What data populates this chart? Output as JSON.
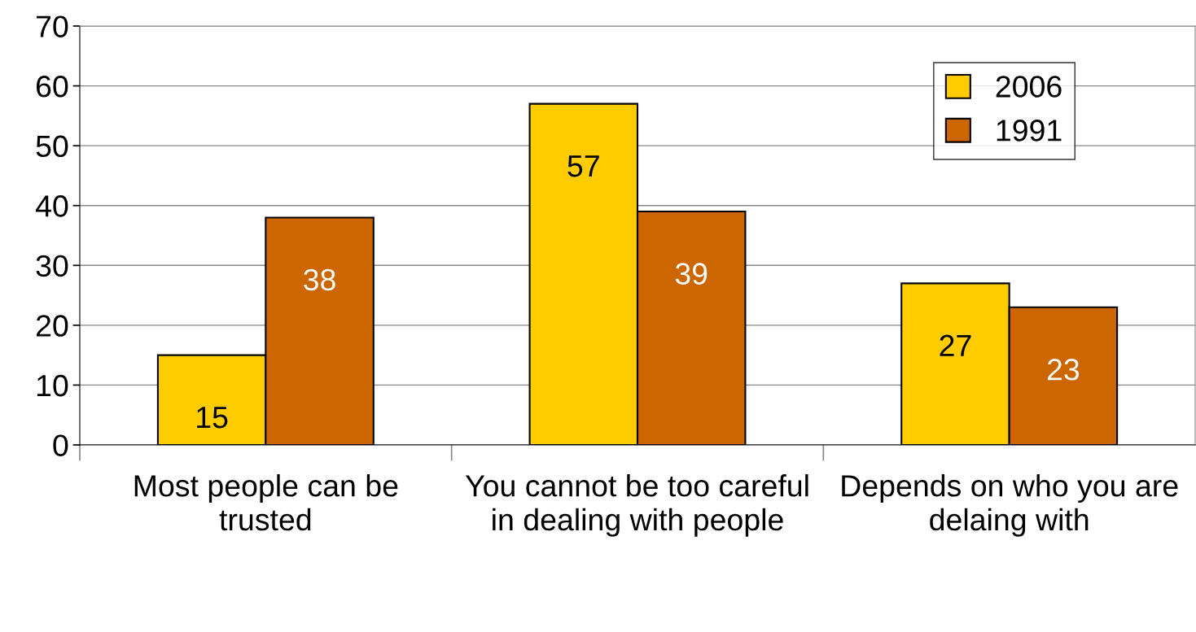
{
  "chart_data": {
    "type": "bar",
    "categories": [
      "Most people can be trusted",
      "You cannot be too careful in dealing with people",
      "Depends on who you are delaing with"
    ],
    "series": [
      {
        "name": "2006",
        "color": "#ffcc00",
        "values": [
          15,
          57,
          27
        ]
      },
      {
        "name": "1991",
        "color": "#cc6600",
        "values": [
          38,
          39,
          23
        ]
      }
    ],
    "ylim": [
      0,
      70
    ],
    "yticks": [
      0,
      10,
      20,
      30,
      40,
      50,
      60,
      70
    ],
    "grid": "y",
    "legend": "top right",
    "data_labels": true
  }
}
